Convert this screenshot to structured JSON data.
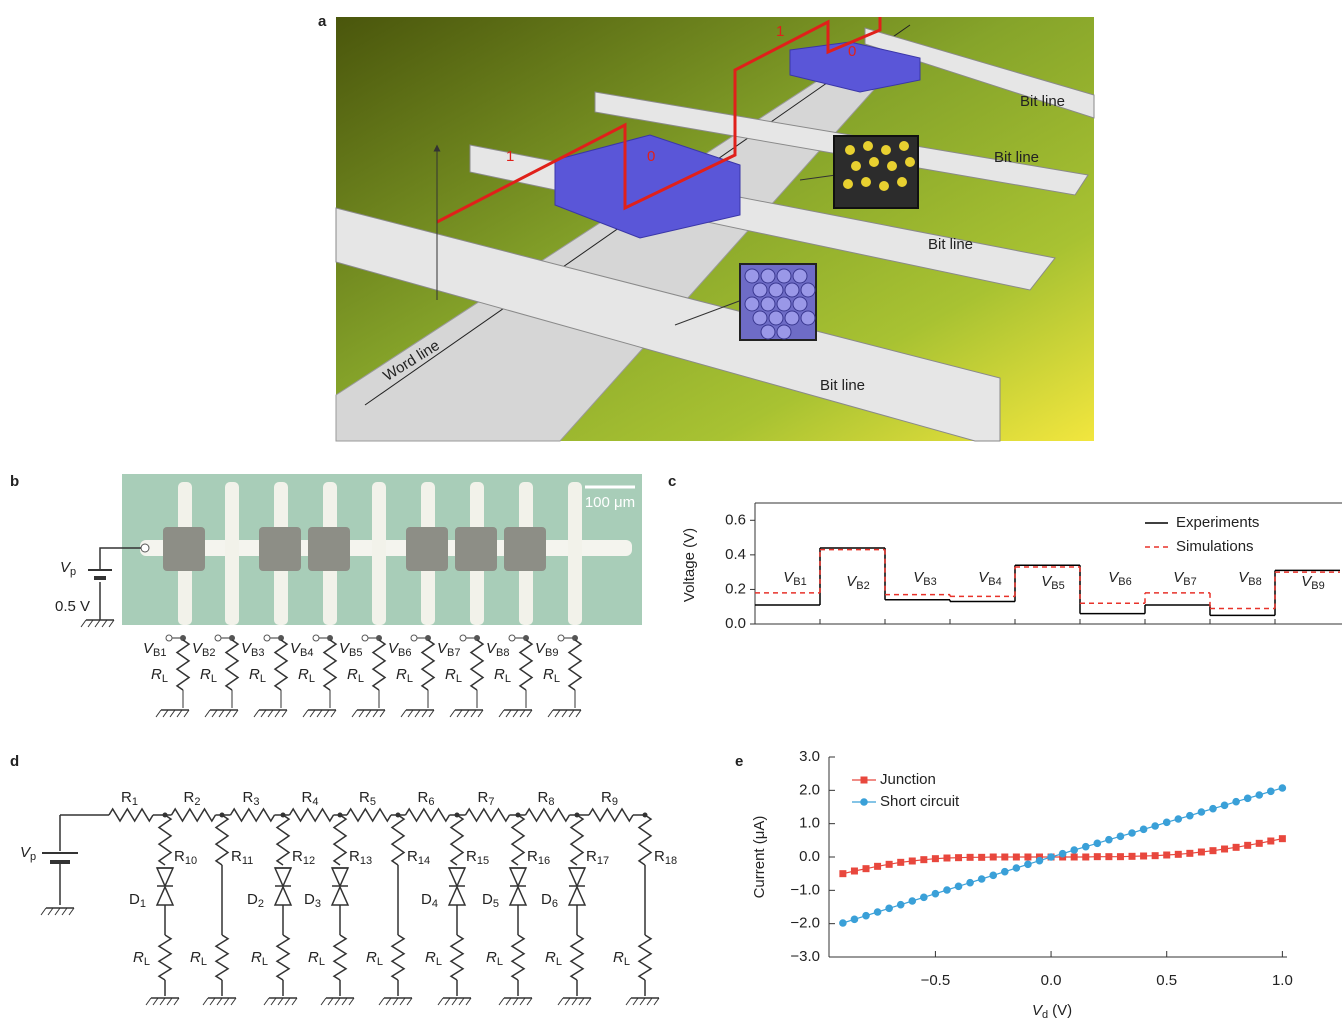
{
  "figure": {
    "panel_labels": [
      "a",
      "b",
      "c",
      "d",
      "e"
    ],
    "a": {
      "word_line": "Word line",
      "bit_lines": [
        "Bit line",
        "Bit line",
        "Bit line",
        "Bit line"
      ],
      "bits": [
        "1",
        "0",
        "1",
        "0"
      ]
    },
    "b": {
      "scale_bar": "100 μm",
      "source_symbol": "V",
      "source_sub": "p",
      "source_value": "0.5 V",
      "node_symbol": "V",
      "node_subs": [
        "B1",
        "B2",
        "B3",
        "B4",
        "B5",
        "B6",
        "B7",
        "B8",
        "B9"
      ],
      "load_symbol": "R",
      "load_sub": "L"
    },
    "d": {
      "source_symbol": "V",
      "source_sub": "p",
      "resistor_symbol": "R",
      "top_resistors": [
        "1",
        "2",
        "3",
        "4",
        "5",
        "6",
        "7",
        "8",
        "9"
      ],
      "branches": [
        {
          "r": "10",
          "d": "1"
        },
        {
          "r": "11"
        },
        {
          "r": "12",
          "d": "2"
        },
        {
          "r": "13",
          "d": "3"
        },
        {
          "r": "14"
        },
        {
          "r": "15",
          "d": "4"
        },
        {
          "r": "16",
          "d": "5"
        },
        {
          "r": "17",
          "d": "6"
        },
        {
          "r": "18"
        }
      ],
      "diode_symbol": "D",
      "load_symbol": "R",
      "load_sub": "L"
    }
  },
  "chart_data": [
    {
      "type": "step",
      "y_label": "Voltage (V)",
      "category_symbol": "V",
      "categories": [
        "B1",
        "B2",
        "B3",
        "B4",
        "B5",
        "B6",
        "B7",
        "B8",
        "B9"
      ],
      "series": [
        {
          "name": "Experiments",
          "color": "#000000",
          "line_style": "solid",
          "values": [
            0.11,
            0.44,
            0.14,
            0.13,
            0.34,
            0.06,
            0.11,
            0.05,
            0.31
          ]
        },
        {
          "name": "Simulations",
          "color": "#e8322a",
          "line_style": "dashed",
          "values": [
            0.18,
            0.43,
            0.17,
            0.16,
            0.33,
            0.12,
            0.18,
            0.09,
            0.3
          ]
        }
      ],
      "ylim": [
        0,
        0.7
      ],
      "yticks": [
        {
          "value": 0,
          "label": "0.0"
        },
        0.2,
        0.4,
        0.6
      ],
      "legend": "upper right"
    },
    {
      "type": "line",
      "y_label": "Current (μA)",
      "x_label": {
        "symbol": "V",
        "sub": "d",
        "unit": "(V)"
      },
      "x": [
        -0.9,
        -0.85,
        -0.8,
        -0.75,
        -0.7,
        -0.65,
        -0.6,
        -0.55,
        -0.5,
        -0.45,
        -0.4,
        -0.35,
        -0.3,
        -0.25,
        -0.2,
        -0.15,
        -0.1,
        -0.05,
        0,
        0.05,
        0.1,
        0.15,
        0.2,
        0.25,
        0.3,
        0.35,
        0.4,
        0.45,
        0.5,
        0.55,
        0.6,
        0.65,
        0.7,
        0.75,
        0.8,
        0.85,
        0.9,
        0.95,
        1.0
      ],
      "series": [
        {
          "name": "Junction",
          "color": "#e8473d",
          "marker": "square",
          "values": [
            -0.5,
            -0.42,
            -0.35,
            -0.28,
            -0.22,
            -0.16,
            -0.12,
            -0.08,
            -0.05,
            -0.03,
            -0.02,
            -0.01,
            -0.01,
            0,
            0,
            0,
            0,
            0,
            0,
            0,
            0,
            0,
            0.01,
            0.01,
            0.01,
            0.02,
            0.03,
            0.04,
            0.06,
            0.08,
            0.11,
            0.15,
            0.19,
            0.24,
            0.29,
            0.35,
            0.41,
            0.48,
            0.55
          ]
        },
        {
          "name": "Short circuit",
          "color": "#3aa0d8",
          "marker": "circle",
          "values": [
            -1.98,
            -1.87,
            -1.76,
            -1.65,
            -1.54,
            -1.43,
            -1.32,
            -1.21,
            -1.1,
            -0.99,
            -0.88,
            -0.77,
            -0.66,
            -0.55,
            -0.44,
            -0.33,
            -0.22,
            -0.11,
            0,
            0.1,
            0.21,
            0.31,
            0.41,
            0.52,
            0.62,
            0.72,
            0.83,
            0.93,
            1.04,
            1.14,
            1.24,
            1.35,
            1.45,
            1.55,
            1.66,
            1.76,
            1.86,
            1.97,
            2.07
          ]
        }
      ],
      "xlim": [
        -0.96,
        1.02
      ],
      "xticks": [
        {
          "value": -0.5,
          "label": "−0.5"
        },
        {
          "value": 0,
          "label": "0.0"
        },
        0.5,
        {
          "value": 1,
          "label": "1.0"
        }
      ],
      "ylim": [
        -3,
        3
      ],
      "yticks": [
        {
          "value": 3,
          "label": "3.0"
        },
        {
          "value": 2,
          "label": "2.0"
        },
        {
          "value": 1,
          "label": "1.0"
        },
        {
          "value": 0,
          "label": "0.0"
        },
        {
          "value": -1,
          "label": "−1.0"
        },
        {
          "value": -2,
          "label": "−2.0"
        },
        {
          "value": -3,
          "label": "−3.0"
        }
      ],
      "legend": "upper left"
    }
  ]
}
